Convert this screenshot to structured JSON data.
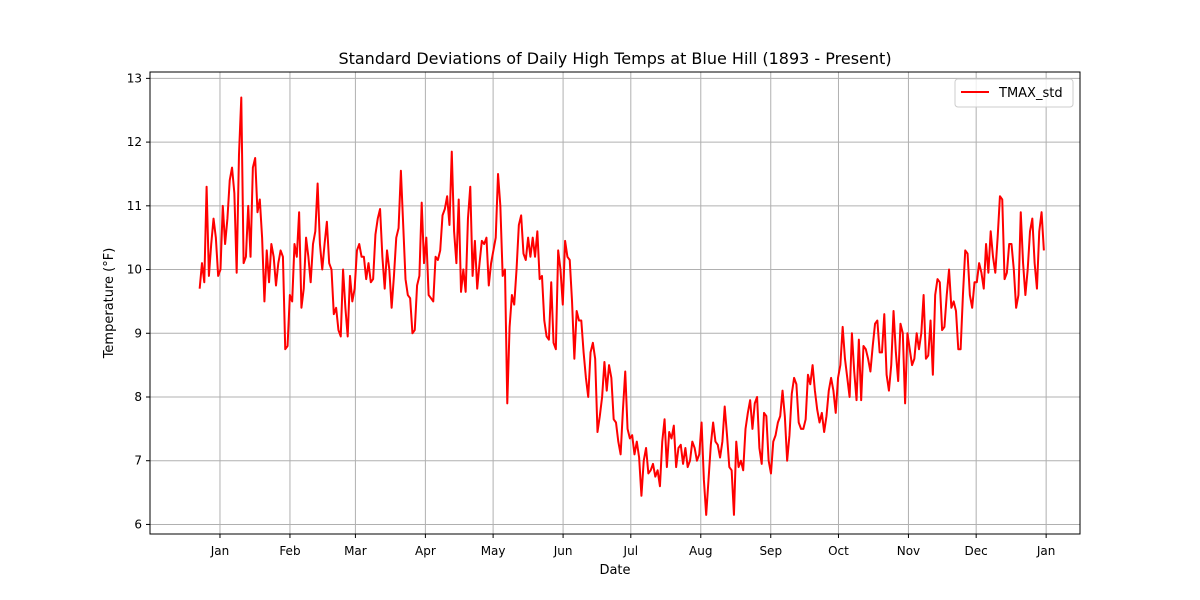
{
  "chart_data": {
    "type": "line",
    "title": "Standard Deviations of Daily High Temps at Blue Hill (1893 - Present)",
    "xlabel": "Date",
    "ylabel": "Temperature (°F)",
    "x_tick_labels": [
      "Jan",
      "Feb",
      "Mar",
      "Apr",
      "May",
      "Jun",
      "Jul",
      "Aug",
      "Sep",
      "Oct",
      "Nov",
      "Dec",
      "Jan"
    ],
    "x_tick_dates": [
      "2020-01-01",
      "2020-02-01",
      "2020-03-01",
      "2020-04-01",
      "2020-05-01",
      "2020-06-01",
      "2020-07-01",
      "2020-08-01",
      "2020-09-01",
      "2020-10-01",
      "2020-11-01",
      "2020-12-01",
      "2021-01-01"
    ],
    "x_range": [
      "2019-12-01",
      "2021-01-16"
    ],
    "y_ticks": [
      6,
      7,
      8,
      9,
      10,
      11,
      12,
      13
    ],
    "ylim": [
      5.85,
      13.1
    ],
    "grid": true,
    "legend_position": "top-right",
    "x_start": "2019-12-23",
    "x_end": "2020-12-31",
    "series": [
      {
        "name": "TMAX_std",
        "color": "#ff0000",
        "values": [
          9.7,
          10.1,
          9.8,
          11.3,
          9.9,
          10.4,
          10.8,
          10.5,
          9.9,
          10.0,
          11.0,
          10.4,
          10.8,
          11.4,
          11.6,
          11.2,
          9.95,
          11.8,
          12.7,
          10.1,
          10.2,
          11.0,
          10.2,
          11.6,
          11.75,
          10.9,
          11.1,
          10.5,
          9.5,
          10.3,
          9.8,
          10.4,
          10.2,
          9.75,
          10.1,
          10.3,
          10.2,
          8.75,
          8.8,
          9.6,
          9.5,
          10.4,
          10.2,
          10.9,
          9.4,
          9.7,
          10.5,
          10.2,
          9.8,
          10.4,
          10.6,
          11.35,
          10.4,
          10.0,
          10.4,
          10.75,
          10.1,
          10.0,
          9.3,
          9.4,
          9.05,
          8.95,
          10.0,
          9.4,
          8.95,
          9.9,
          9.5,
          9.7,
          10.3,
          10.4,
          10.2,
          10.2,
          9.85,
          10.1,
          9.8,
          9.85,
          10.55,
          10.8,
          10.95,
          10.2,
          9.7,
          10.3,
          10.0,
          9.4,
          9.9,
          10.5,
          10.65,
          11.55,
          10.7,
          9.85,
          9.6,
          9.55,
          9.0,
          9.05,
          9.75,
          9.9,
          11.05,
          10.1,
          10.5,
          9.6,
          9.55,
          9.5,
          10.2,
          10.15,
          10.3,
          10.85,
          10.95,
          11.15,
          10.7,
          11.85,
          10.6,
          10.1,
          11.1,
          9.65,
          10.0,
          9.65,
          10.8,
          11.3,
          9.9,
          10.45,
          9.7,
          10.1,
          10.45,
          10.4,
          10.5,
          9.75,
          10.1,
          10.3,
          10.5,
          11.5,
          11.0,
          9.9,
          10.0,
          7.9,
          9.1,
          9.6,
          9.45,
          10.0,
          10.7,
          10.85,
          10.25,
          10.15,
          10.5,
          10.2,
          10.5,
          10.2,
          10.6,
          9.85,
          9.9,
          9.2,
          8.95,
          8.9,
          9.8,
          8.85,
          8.75,
          10.3,
          10.0,
          9.45,
          10.45,
          10.2,
          10.15,
          9.5,
          8.6,
          9.35,
          9.2,
          9.2,
          8.7,
          8.3,
          8.0,
          8.7,
          8.85,
          8.6,
          7.45,
          7.7,
          8.0,
          8.55,
          8.1,
          8.5,
          8.3,
          7.65,
          7.6,
          7.3,
          7.1,
          7.8,
          8.4,
          7.5,
          7.35,
          7.4,
          7.1,
          7.3,
          7.05,
          6.45,
          7.0,
          7.2,
          6.8,
          6.85,
          6.95,
          6.75,
          6.85,
          6.6,
          7.3,
          7.65,
          6.9,
          7.45,
          7.35,
          7.55,
          6.9,
          7.2,
          7.25,
          6.95,
          7.2,
          6.9,
          7.0,
          7.3,
          7.2,
          7.0,
          7.1,
          7.6,
          6.7,
          6.15,
          6.7,
          7.25,
          7.6,
          7.3,
          7.25,
          7.05,
          7.3,
          7.85,
          7.4,
          6.9,
          6.85,
          6.15,
          7.3,
          6.9,
          7.0,
          6.85,
          7.5,
          7.75,
          7.95,
          7.5,
          7.9,
          8.0,
          7.2,
          6.95,
          7.75,
          7.7,
          7.0,
          6.8,
          7.3,
          7.4,
          7.6,
          7.7,
          8.1,
          7.7,
          7.0,
          7.4,
          8.05,
          8.3,
          8.2,
          7.6,
          7.5,
          7.5,
          7.65,
          8.35,
          8.2,
          8.5,
          8.1,
          7.8,
          7.6,
          7.75,
          7.45,
          7.7,
          8.1,
          8.3,
          8.1,
          7.75,
          8.3,
          8.5,
          9.1,
          8.6,
          8.3,
          8.0,
          9.0,
          8.4,
          7.95,
          8.9,
          7.95,
          8.8,
          8.75,
          8.6,
          8.4,
          8.8,
          9.15,
          9.2,
          8.7,
          8.7,
          9.3,
          8.35,
          8.1,
          8.5,
          9.35,
          8.7,
          8.25,
          9.15,
          9.0,
          7.9,
          9.0,
          8.75,
          8.5,
          8.6,
          9.0,
          8.75,
          9.0,
          9.6,
          8.6,
          8.65,
          9.2,
          8.35,
          9.6,
          9.85,
          9.8,
          9.05,
          9.1,
          9.6,
          10.0,
          9.4,
          9.5,
          9.35,
          8.75,
          8.75,
          9.6,
          10.3,
          10.25,
          9.6,
          9.4,
          9.8,
          9.8,
          10.1,
          9.95,
          9.7,
          10.4,
          9.95,
          10.6,
          10.2,
          9.95,
          10.5,
          11.15,
          11.1,
          9.85,
          9.95,
          10.4,
          10.4,
          10.0,
          9.4,
          9.6,
          10.9,
          10.1,
          9.6,
          10.0,
          10.6,
          10.8,
          10.1,
          9.7,
          10.6,
          10.9,
          10.3
        ]
      }
    ]
  }
}
